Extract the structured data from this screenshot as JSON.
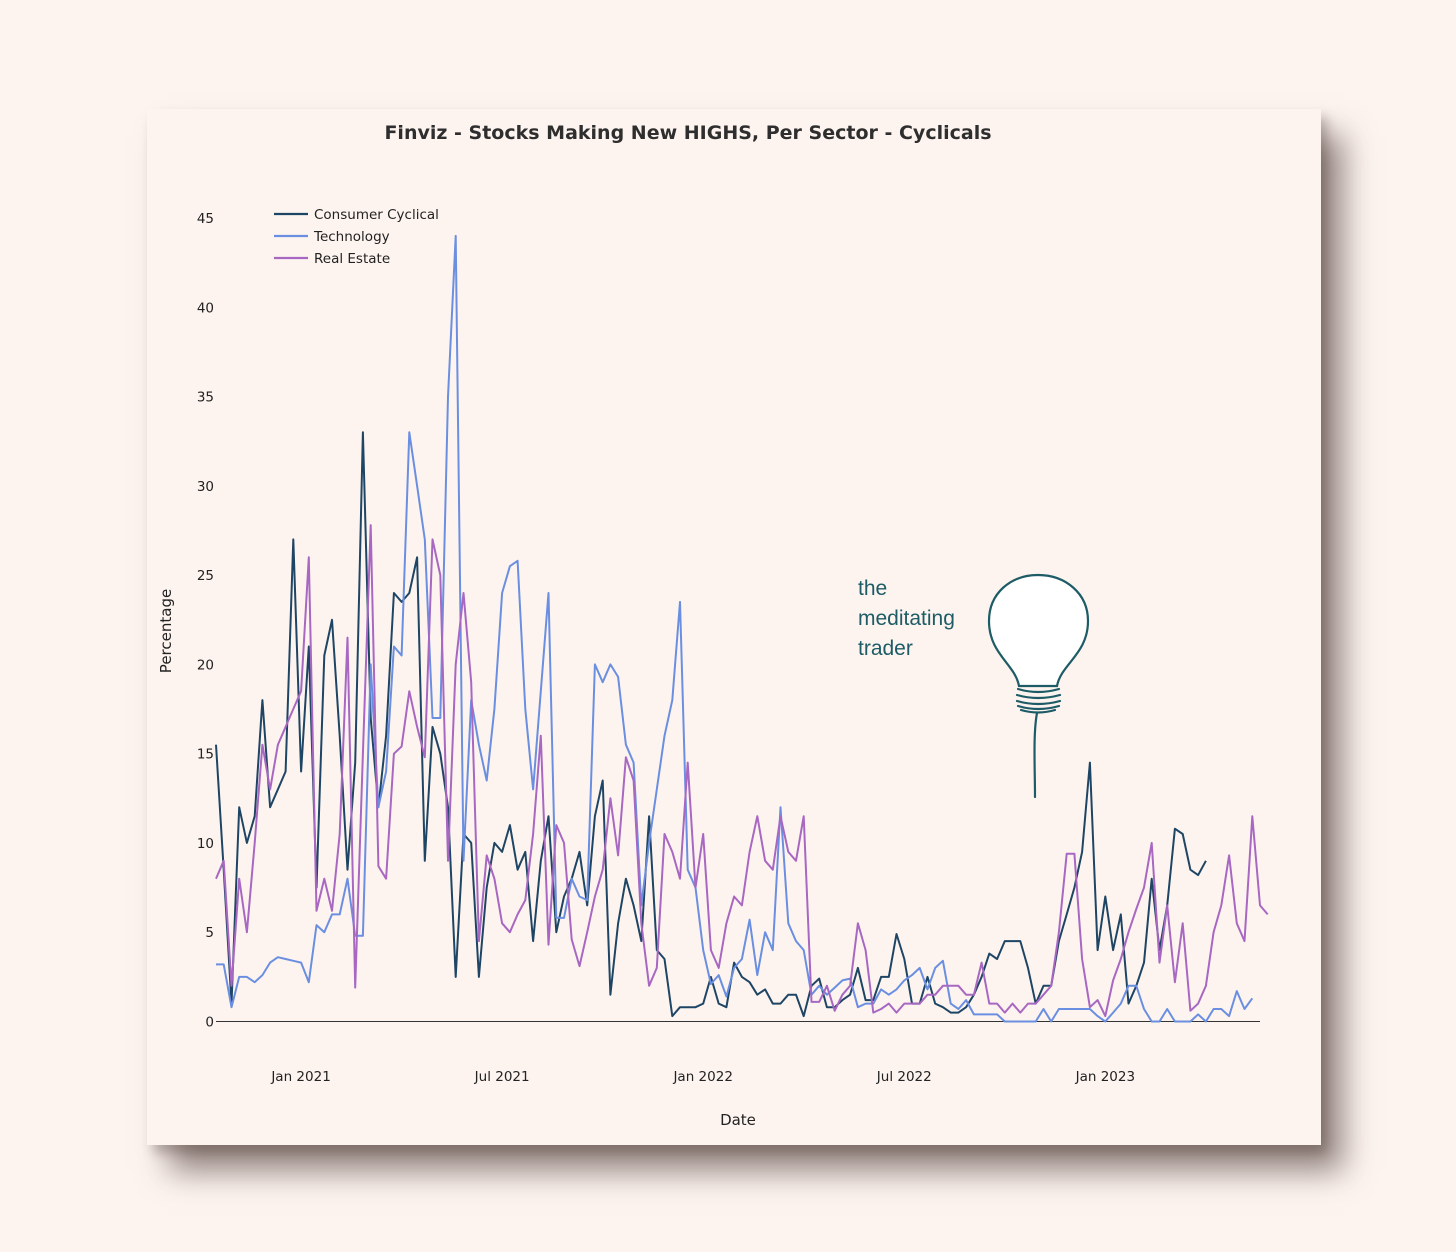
{
  "chart_data": {
    "type": "line",
    "title": "Finviz - Stocks Making New HIGHS, Per Sector - Cyclicals",
    "xlabel": "Date",
    "ylabel": "Percentage",
    "ylim": [
      0,
      45
    ],
    "yticks": [
      0,
      5,
      10,
      15,
      20,
      25,
      30,
      35,
      40,
      45
    ],
    "xticks": [
      {
        "label": "Jan 2021",
        "t": 11
      },
      {
        "label": "Jul 2021",
        "t": 37
      },
      {
        "label": "Jan 2022",
        "t": 63
      },
      {
        "label": "Jul 2022",
        "t": 89
      },
      {
        "label": "Jan 2023",
        "t": 115
      }
    ],
    "x_range": [
      0,
      135
    ],
    "legend_position": "top-left",
    "series": [
      {
        "name": "Consumer Cyclical",
        "color": "#1f4564",
        "values": [
          15.5,
          8.5,
          1,
          12,
          10,
          11.5,
          18,
          12,
          13,
          14,
          27,
          14,
          21,
          7.5,
          20.5,
          22.5,
          16,
          8.5,
          14.5,
          33,
          17,
          12,
          16,
          24,
          23.5,
          24,
          26,
          9,
          16.5,
          15,
          12,
          2.5,
          10.5,
          10,
          2.5,
          7.5,
          10,
          9.5,
          11,
          8.5,
          9.5,
          4.5,
          9,
          11.5,
          5,
          7,
          8,
          9.5,
          6.5,
          11.5,
          13.5,
          1.5,
          5.5,
          8,
          6.5,
          4.5,
          11.5,
          4,
          3.5,
          0.3,
          0.8,
          0.8,
          0.8,
          1,
          2.5,
          1,
          0.8,
          3.3,
          2.5,
          2.2,
          1.5,
          1.8,
          1,
          1,
          1.5,
          1.5,
          0.3,
          2,
          2.4,
          0.8,
          0.8,
          1.2,
          1.5,
          3,
          1.2,
          1.2,
          2.5,
          2.5,
          4.9,
          3.5,
          1,
          1,
          2.5,
          1,
          0.8,
          0.5,
          0.5,
          0.8,
          1.5,
          2.5,
          3.8,
          3.5,
          4.5,
          4.5,
          4.5,
          3,
          1,
          2,
          2,
          4.5,
          6,
          7.5,
          9.5,
          14.5,
          4,
          7,
          4,
          6,
          1,
          2,
          3.3,
          8,
          4,
          6.5,
          10.8,
          10.5,
          8.5,
          8.2,
          9
        ]
      },
      {
        "name": "Technology",
        "color": "#6b8fe0",
        "values": [
          3.2,
          3.2,
          0.8,
          2.5,
          2.5,
          2.2,
          2.6,
          3.3,
          3.6,
          3.5,
          3.4,
          3.3,
          2.2,
          5.4,
          5,
          6,
          6,
          8,
          4.8,
          4.8,
          20,
          12,
          14,
          21,
          20.5,
          33,
          30,
          27,
          17,
          17,
          35,
          44,
          9,
          18,
          15.5,
          13.5,
          17.5,
          24,
          25.5,
          25.8,
          17.5,
          13,
          18.5,
          24,
          5.8,
          5.8,
          8,
          7,
          6.8,
          20,
          19,
          20,
          19.3,
          15.5,
          14.5,
          6.5,
          10,
          13,
          16,
          18,
          23.5,
          8.5,
          7.5,
          4,
          2.1,
          2.6,
          1.4,
          3,
          3.5,
          5.7,
          2.6,
          5,
          4,
          12,
          5.5,
          4.5,
          4,
          1.5,
          2,
          1.5,
          1.9,
          2.3,
          2.4,
          0.8,
          1,
          1,
          1.8,
          1.5,
          1.8,
          2.3,
          2.6,
          3,
          1.8,
          3,
          3.4,
          1,
          0.7,
          1.2,
          0.4,
          0.4,
          0.4,
          0.4,
          0,
          0,
          0,
          0,
          0,
          0.7,
          0,
          0.7,
          0.7,
          0.7,
          0.7,
          0.7,
          0.3,
          0,
          0.5,
          1,
          2,
          2,
          0.7,
          0,
          0,
          0.7,
          0,
          0,
          0,
          0.4,
          0,
          0.7,
          0.7,
          0.3,
          1.7,
          0.7,
          1.3
        ]
      },
      {
        "name": "Real Estate",
        "color": "#a868c2",
        "values": [
          8,
          9,
          2,
          8,
          5,
          10,
          15.5,
          13,
          15.5,
          16.5,
          17.5,
          18.5,
          26,
          6.2,
          8,
          6.2,
          10.5,
          21.5,
          1.9,
          15,
          27.8,
          8.7,
          8,
          15,
          15.4,
          18.5,
          16.5,
          14.8,
          27,
          25,
          9,
          20,
          24,
          19,
          4.5,
          9.3,
          8,
          5.5,
          5,
          6,
          6.8,
          10.5,
          16,
          4.3,
          11,
          10,
          4.6,
          3.1,
          5,
          7,
          8.5,
          12.5,
          9.3,
          14.8,
          13.5,
          5.5,
          2,
          3,
          10.5,
          9.5,
          8,
          14.5,
          7.5,
          10.5,
          4,
          3,
          5.5,
          7,
          6.5,
          9.5,
          11.5,
          9,
          8.5,
          11.5,
          9.5,
          9,
          11.5,
          1.1,
          1.1,
          2,
          0.6,
          1.5,
          2,
          5.5,
          4,
          0.5,
          0.7,
          1,
          0.5,
          1,
          1,
          1,
          1.5,
          1.5,
          2,
          2,
          2,
          1.5,
          1.5,
          3.3,
          1,
          1,
          0.5,
          1,
          0.5,
          1,
          1,
          1.5,
          2,
          5,
          9.4,
          9.4,
          3.5,
          0.8,
          1.2,
          0.3,
          2.3,
          3.5,
          5,
          6.3,
          7.5,
          10,
          3.3,
          6.5,
          2.2,
          5.5,
          0.6,
          1,
          2,
          5,
          6.5,
          9.3,
          5.5,
          4.5,
          11.5,
          6.5,
          6
        ]
      }
    ]
  },
  "watermark": {
    "line1": "the",
    "line2": "meditating",
    "line3": "trader",
    "icon": "lightbulb-icon",
    "color": "#1d5c66"
  }
}
